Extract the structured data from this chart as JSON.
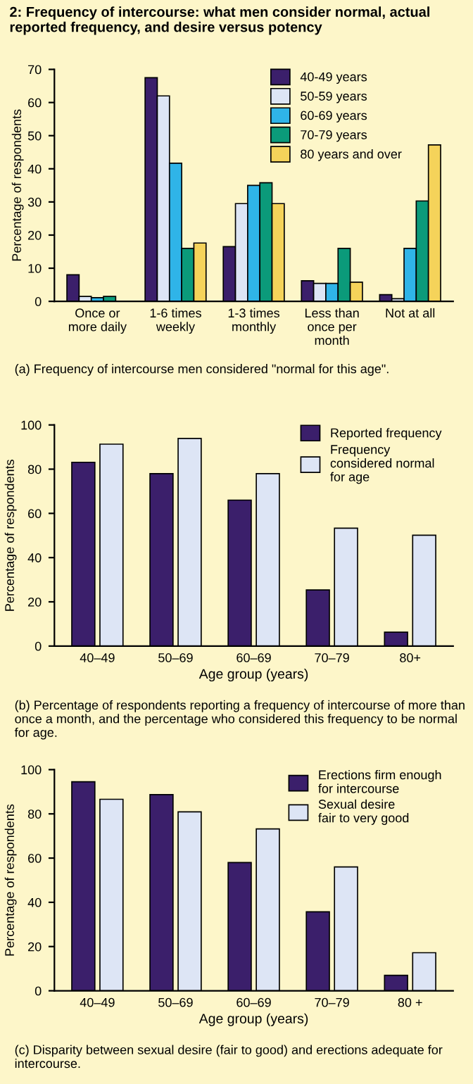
{
  "chart_data": [
    {
      "type": "bar",
      "title": "2: Frequency of intercourse: what men consider normal, actual reported frequency, and desire versus potency",
      "ylabel": "Percentage of respondents",
      "categories": [
        "Once or\nmore daily",
        "1-6 times\nweekly",
        "1-3 times\nmonthly",
        "Less than\nonce per\nmonth",
        "Not at all"
      ],
      "series": [
        {
          "name": "40-49 years",
          "color": "#3b1f6b",
          "values": [
            8,
            67.5,
            16.5,
            6.2,
            2
          ]
        },
        {
          "name": "50-59 years",
          "color": "#dde5f5",
          "values": [
            1.5,
            62,
            29.5,
            5.4,
            0.8
          ]
        },
        {
          "name": "60-69 years",
          "color": "#2fb4e8",
          "values": [
            1.1,
            41.7,
            35,
            5.4,
            16
          ]
        },
        {
          "name": "70-79 years",
          "color": "#0b9a7a",
          "values": [
            1.5,
            16,
            35.8,
            16,
            30.3
          ]
        },
        {
          "name": "80 years and over",
          "color": "#f5d35a",
          "values": [
            null,
            17.6,
            29.5,
            5.8,
            47.2
          ]
        }
      ],
      "ylim": [
        0,
        70
      ],
      "yticks": [
        0,
        10,
        20,
        30,
        40,
        50,
        60,
        70
      ],
      "legend": "top right",
      "grid": false,
      "annotations": [
        "(a) Frequency of intercourse men considered \"normal for this age\"."
      ]
    },
    {
      "type": "bar",
      "ylabel": "Percentage of respondents",
      "xlabel": "Age group (years)",
      "categories": [
        "40–49",
        "50–69",
        "60–69",
        "70–79",
        "80+"
      ],
      "series": [
        {
          "name": "Reported frequency",
          "color": "#3b1f6b",
          "values": [
            83.1,
            78,
            66,
            25.4,
            6.3
          ]
        },
        {
          "name": "Frequency\nconsidered normal\nfor age",
          "color": "#dde5f5",
          "values": [
            91.3,
            93.9,
            78,
            53.3,
            50.1
          ]
        }
      ],
      "ylim": [
        0,
        100
      ],
      "yticks": [
        0,
        20,
        40,
        60,
        80,
        100
      ],
      "legend": "top right",
      "grid": false,
      "annotations": [
        "(b) Percentage of respondents reporting a frequency of intercourse of more than once a month, and the percentage who considered this frequency to be normal for age."
      ]
    },
    {
      "type": "bar",
      "ylabel": "Percentage of respondents",
      "xlabel": "Age group (years)",
      "categories": [
        "40–49",
        "50–69",
        "60–69",
        "70–79",
        "80 +"
      ],
      "series": [
        {
          "name": "Erections firm enough\nfor intercourse",
          "color": "#3b1f6b",
          "values": [
            94.5,
            88.7,
            58,
            35.7,
            7
          ]
        },
        {
          "name": "Sexual desire\nfair to very good",
          "color": "#dde5f5",
          "values": [
            86.6,
            80.9,
            73.2,
            56,
            17.2
          ]
        }
      ],
      "ylim": [
        0,
        100
      ],
      "yticks": [
        0,
        20,
        40,
        60,
        80,
        100
      ],
      "legend": "top right",
      "grid": false,
      "annotations": [
        "(c) Disparity between sexual desire (fair to good) and erections adequate for intercourse."
      ]
    }
  ]
}
